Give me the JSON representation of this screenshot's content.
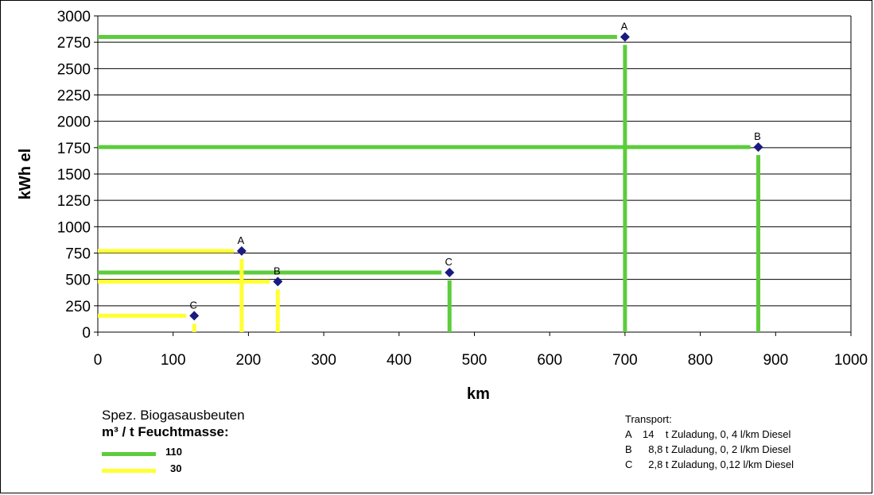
{
  "chart_data": {
    "type": "line",
    "xlabel": "km",
    "ylabel": "kWh el",
    "xlim": [
      0,
      1000
    ],
    "ylim": [
      0,
      3000
    ],
    "x_ticks": [
      "0",
      "100",
      "200",
      "300",
      "400",
      "500",
      "600",
      "700",
      "800",
      "900",
      "1000"
    ],
    "y_ticks": [
      "0",
      "250",
      "500",
      "750",
      "1000",
      "1250",
      "1500",
      "1750",
      "2000",
      "2250",
      "2500",
      "2750",
      "3000"
    ],
    "grid": "horizontal",
    "series": [
      {
        "name": "110",
        "color": "#5dcc3c",
        "points": [
          {
            "label": "A",
            "x": 700,
            "y": 2800
          },
          {
            "label": "B",
            "x": 877,
            "y": 1755
          },
          {
            "label": "C",
            "x": 467,
            "y": 565
          }
        ]
      },
      {
        "name": "30",
        "color": "#ffff33",
        "points": [
          {
            "label": "A",
            "x": 191,
            "y": 770
          },
          {
            "label": "B",
            "x": 239,
            "y": 480
          },
          {
            "label": "C",
            "x": 128,
            "y": 155
          }
        ]
      }
    ],
    "marker_color": "#1a1a80"
  },
  "legend": {
    "title_line1": "Spez. Biogasausbeuten",
    "title_line2": "m³ / t Feuchtmasse:",
    "items": [
      {
        "label": "110",
        "color": "#5dcc3c"
      },
      {
        "label": "30",
        "color": "#ffff33"
      }
    ]
  },
  "transport": {
    "title": "Transport:",
    "rows": [
      {
        "key": "A",
        "text": "14    t Zuladung, 0, 4 l/km Diesel"
      },
      {
        "key": "B",
        "text": "  8,8 t Zuladung, 0, 2 l/km Diesel"
      },
      {
        "key": "C",
        "text": "  2,8 t Zuladung, 0,12 l/km Diesel"
      }
    ]
  }
}
